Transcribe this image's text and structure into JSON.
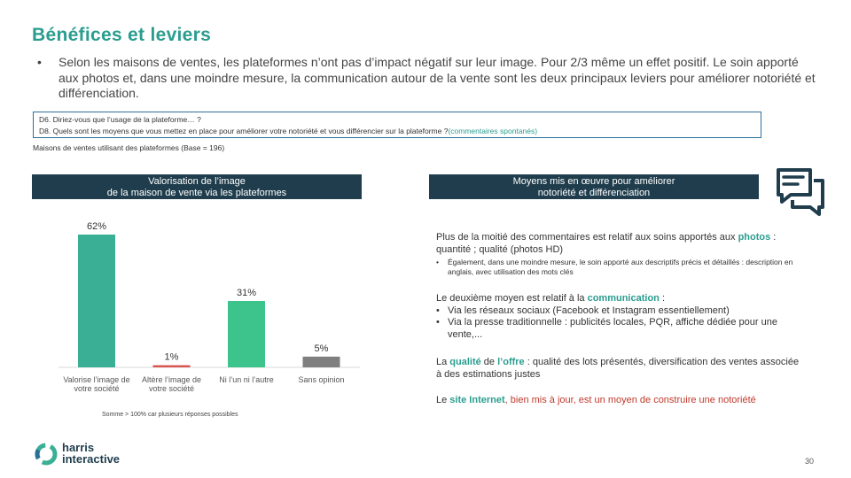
{
  "title": "Bénéfices et leviers",
  "intro": {
    "bullet": "•",
    "text": "Selon les maisons de ventes, les plateformes n’ont pas d’impact négatif sur leur image. Pour 2/3 même un effet positif. Le soin apporté aux photos et, dans une moindre mesure, la communication autour de la vente sont les deux principaux leviers pour améliorer notoriété et différenciation."
  },
  "questions": {
    "q6": "D6. Diriez-vous que l’usage de la plateforme… ?",
    "q8": "D8. Quels sont les moyens que vous mettez en place pour améliorer votre notoriété et vous différencier sur la plateforme ?",
    "q8_note": "(commentaires spontanés)"
  },
  "base": "Maisons de ventes utilisant des plateformes (Base = 196)",
  "left_header": {
    "line1": "Valorisation de l’image",
    "line2": "de la maison de vente via les plateformes"
  },
  "right_header": {
    "line1": "Moyens mis en œuvre pour améliorer",
    "line2": "notoriété et différenciation"
  },
  "chart_data": {
    "type": "bar",
    "title": "",
    "xlabel": "",
    "ylabel": "",
    "ylim": [
      0,
      62
    ],
    "grid": false,
    "categories": [
      [
        "Valorise l’image de",
        "votre société"
      ],
      [
        "Altère l’image de",
        "votre société"
      ],
      [
        "Ni l’un ni l’autre"
      ],
      [
        "Sans opinion"
      ]
    ],
    "values": [
      62,
      1,
      31,
      5
    ],
    "labels": [
      "62%",
      "1%",
      "31%",
      "5%"
    ],
    "colors": [
      "#3aaf95",
      "#d9534f",
      "#3dc48d",
      "#7f7f7f"
    ]
  },
  "footnote": "Somme > 100% car plusieurs réponses possibles",
  "right_blocks": {
    "b1_pre": "Plus de la moitié des commentaires est relatif aux soins apportés aux ",
    "b1_hl": "photos",
    "b1_post": " : quantité ; qualité (photos HD)",
    "b1_sub": "Également, dans une moindre mesure, le soin apporté aux descriptifs précis et détaillés : description en anglais, avec utilisation des mots clés",
    "b2_pre": "Le deuxième moyen est relatif à la ",
    "b2_hl": "communication",
    "b2_post": " :",
    "b2_items": [
      "Via les réseaux sociaux (Facebook et Instagram essentiellement)",
      "Via la presse traditionnelle : publicités locales, PQR, affiche dédiée pour une vente,..."
    ],
    "b3_pre": "La ",
    "b3_hl1": "qualité",
    "b3_mid": " de ",
    "b3_hl2": "l’offre",
    "b3_post": " : qualité des lots présentés, diversification des ventes associée à des estimations justes",
    "b4_pre": "Le ",
    "b4_hl": "site Internet",
    "b4_post": ", bien mis à jour, est un moyen de construire une notoriété"
  },
  "logo": {
    "line1": "harris",
    "line2": "interactive"
  },
  "page_number": "30",
  "icons": {
    "chat": "chat-bubbles-icon",
    "logo": "harris-logo-icon"
  }
}
